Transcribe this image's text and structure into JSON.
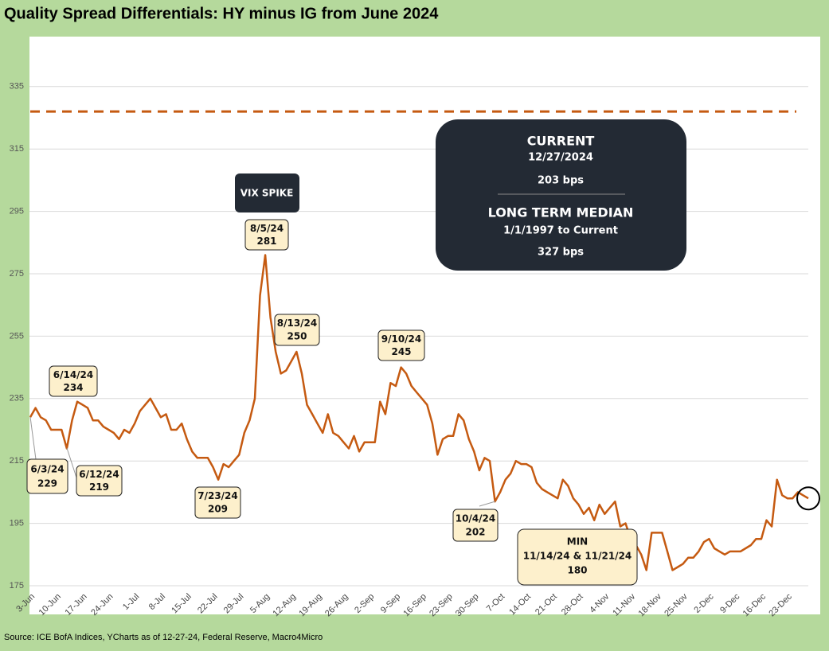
{
  "chart_data": {
    "type": "line",
    "title": "Quality Spread Differentials: HY minus IG from June 2024",
    "source": "Source: ICE BofA Indices, YCharts as of 12-27-24, Federal Reserve, Macro4Micro",
    "x": [
      "3-Jun",
      "4-Jun",
      "5-Jun",
      "6-Jun",
      "7-Jun",
      "10-Jun",
      "11-Jun",
      "12-Jun",
      "13-Jun",
      "14-Jun",
      "17-Jun",
      "18-Jun",
      "19-Jun",
      "20-Jun",
      "21-Jun",
      "24-Jun",
      "25-Jun",
      "26-Jun",
      "27-Jun",
      "28-Jun",
      "1-Jul",
      "2-Jul",
      "3-Jul",
      "4-Jul",
      "5-Jul",
      "8-Jul",
      "9-Jul",
      "10-Jul",
      "11-Jul",
      "12-Jul",
      "15-Jul",
      "16-Jul",
      "17-Jul",
      "18-Jul",
      "19-Jul",
      "22-Jul",
      "23-Jul",
      "24-Jul",
      "25-Jul",
      "26-Jul",
      "29-Jul",
      "30-Jul",
      "31-Jul",
      "1-Aug",
      "2-Aug",
      "5-Aug",
      "6-Aug",
      "7-Aug",
      "8-Aug",
      "9-Aug",
      "12-Aug",
      "13-Aug",
      "14-Aug",
      "15-Aug",
      "16-Aug",
      "19-Aug",
      "20-Aug",
      "21-Aug",
      "22-Aug",
      "23-Aug",
      "26-Aug",
      "27-Aug",
      "28-Aug",
      "29-Aug",
      "30-Aug",
      "2-Sep",
      "3-Sep",
      "4-Sep",
      "5-Sep",
      "6-Sep",
      "9-Sep",
      "10-Sep",
      "11-Sep",
      "12-Sep",
      "13-Sep",
      "16-Sep",
      "17-Sep",
      "18-Sep",
      "19-Sep",
      "20-Sep",
      "23-Sep",
      "24-Sep",
      "25-Sep",
      "26-Sep",
      "27-Sep",
      "30-Sep",
      "1-Oct",
      "2-Oct",
      "3-Oct",
      "4-Oct",
      "7-Oct",
      "8-Oct",
      "9-Oct",
      "10-Oct",
      "11-Oct",
      "14-Oct",
      "15-Oct",
      "16-Oct",
      "17-Oct",
      "18-Oct",
      "21-Oct",
      "22-Oct",
      "23-Oct",
      "24-Oct",
      "25-Oct",
      "28-Oct",
      "29-Oct",
      "30-Oct",
      "31-Oct",
      "1-Nov",
      "4-Nov",
      "5-Nov",
      "6-Nov",
      "7-Nov",
      "8-Nov",
      "11-Nov",
      "12-Nov",
      "13-Nov",
      "14-Nov",
      "15-Nov",
      "18-Nov",
      "19-Nov",
      "20-Nov",
      "21-Nov",
      "22-Nov",
      "25-Nov",
      "26-Nov",
      "27-Nov",
      "28-Nov",
      "29-Nov",
      "2-Dec",
      "3-Dec",
      "4-Dec",
      "5-Dec",
      "6-Dec",
      "9-Dec",
      "10-Dec",
      "11-Dec",
      "12-Dec",
      "13-Dec",
      "16-Dec",
      "17-Dec",
      "18-Dec",
      "19-Dec",
      "20-Dec",
      "23-Dec",
      "24-Dec",
      "25-Dec",
      "26-Dec",
      "27-Dec"
    ],
    "values": [
      229,
      232,
      229,
      228,
      225,
      225,
      225,
      219,
      228,
      234,
      233,
      232,
      228,
      228,
      226,
      225,
      224,
      222,
      225,
      224,
      227,
      231,
      233,
      235,
      232,
      229,
      230,
      225,
      225,
      227,
      222,
      218,
      216,
      216,
      216,
      213,
      209,
      214,
      213,
      215,
      217,
      224,
      228,
      235,
      268,
      281,
      261,
      250,
      243,
      244,
      247,
      250,
      243,
      233,
      230,
      227,
      224,
      230,
      224,
      223,
      221,
      219,
      223,
      218,
      221,
      221,
      221,
      234,
      230,
      240,
      239,
      245,
      243,
      239,
      237,
      235,
      233,
      227,
      217,
      222,
      223,
      223,
      230,
      228,
      222,
      218,
      212,
      216,
      215,
      202,
      205,
      209,
      211,
      215,
      214,
      214,
      213,
      208,
      206,
      205,
      204,
      203,
      209,
      207,
      203,
      201,
      198,
      200,
      196,
      201,
      198,
      200,
      202,
      194,
      195,
      190,
      188,
      185,
      180,
      192,
      192,
      192,
      186,
      180,
      181,
      182,
      184,
      184,
      186,
      189,
      190,
      187,
      186,
      185,
      186,
      186,
      186,
      187,
      188,
      190,
      190,
      196,
      194,
      209,
      204,
      203,
      203,
      205,
      204,
      203
    ],
    "color": "#c55a11",
    "xticks": [
      "3-Jun",
      "10-Jun",
      "17-Jun",
      "24-Jun",
      "1-Jul",
      "8-Jul",
      "15-Jul",
      "22-Jul",
      "29-Jul",
      "5-Aug",
      "12-Aug",
      "19-Aug",
      "26-Aug",
      "2-Sep",
      "9-Sep",
      "16-Sep",
      "23-Sep",
      "30-Sep",
      "7-Oct",
      "14-Oct",
      "21-Oct",
      "28-Oct",
      "4-Nov",
      "11-Nov",
      "18-Nov",
      "25-Nov",
      "2-Dec",
      "9-Dec",
      "16-Dec",
      "23-Dec"
    ],
    "ylim": [
      175,
      350
    ],
    "yticks": [
      175,
      195,
      215,
      235,
      255,
      275,
      295,
      315,
      335
    ],
    "grid": true,
    "median_line": 327,
    "current": {
      "title": "CURRENT",
      "date": "12/27/2024",
      "value": "203 bps"
    },
    "median": {
      "title": "LONG TERM MEDIAN",
      "period": "1/1/1997 to Current",
      "value": "327 bps"
    },
    "event": "VIX SPIKE",
    "callouts": [
      {
        "date": "6/3/24",
        "value": 229
      },
      {
        "date": "6/14/24",
        "value": 234
      },
      {
        "date": "6/12/24",
        "value": 219
      },
      {
        "date": "7/23/24",
        "value": 209
      },
      {
        "date": "8/5/24",
        "value": 281
      },
      {
        "date": "8/13/24",
        "value": 250
      },
      {
        "date": "9/10/24",
        "value": 245
      },
      {
        "date": "10/4/24",
        "value": 202
      }
    ],
    "min_callout": {
      "title": "MIN",
      "dates": "11/14/24 & 11/21/24",
      "value": 180
    }
  }
}
